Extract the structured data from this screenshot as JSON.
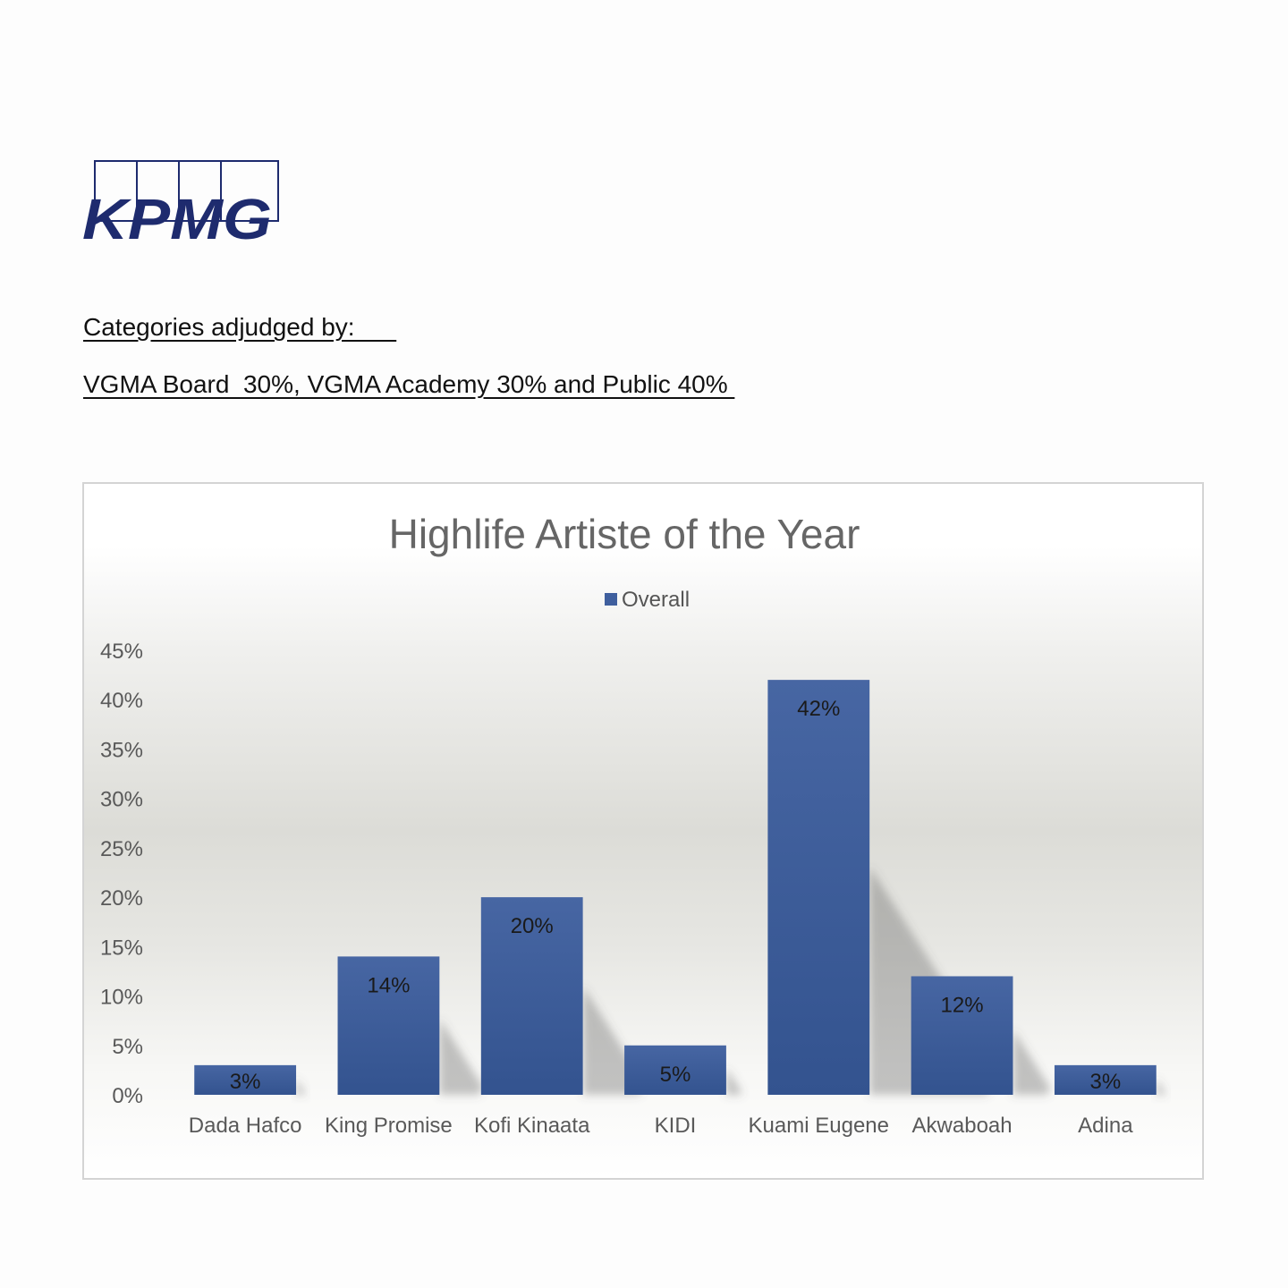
{
  "brand": {
    "name": "KPMG",
    "color": "#1e2b6e"
  },
  "adjudication": {
    "heading": "Categories adjudged by:      ",
    "breakdown": "VGMA Board  30%, VGMA Academy 30% and Public 40% "
  },
  "chart_data": {
    "type": "bar",
    "title": "Highlife Artiste of the Year",
    "legend": {
      "position": "top",
      "entries": [
        "Overall"
      ]
    },
    "xlabel": "",
    "ylabel": "",
    "ylim": [
      0,
      45
    ],
    "y_ticks": [
      "0%",
      "5%",
      "10%",
      "15%",
      "20%",
      "25%",
      "30%",
      "35%",
      "40%",
      "45%"
    ],
    "categories": [
      "Dada Hafco",
      "King Promise",
      "Kofi Kinaata",
      "KIDI",
      "Kuami Eugene",
      "Akwaboah",
      "Adina"
    ],
    "series": [
      {
        "name": "Overall",
        "color": "#3f5f9e",
        "values": [
          3,
          14,
          20,
          5,
          42,
          12,
          3
        ],
        "labels": [
          "3%",
          "14%",
          "20%",
          "5%",
          "42%",
          "12%",
          "3%"
        ]
      }
    ],
    "grid": false
  }
}
